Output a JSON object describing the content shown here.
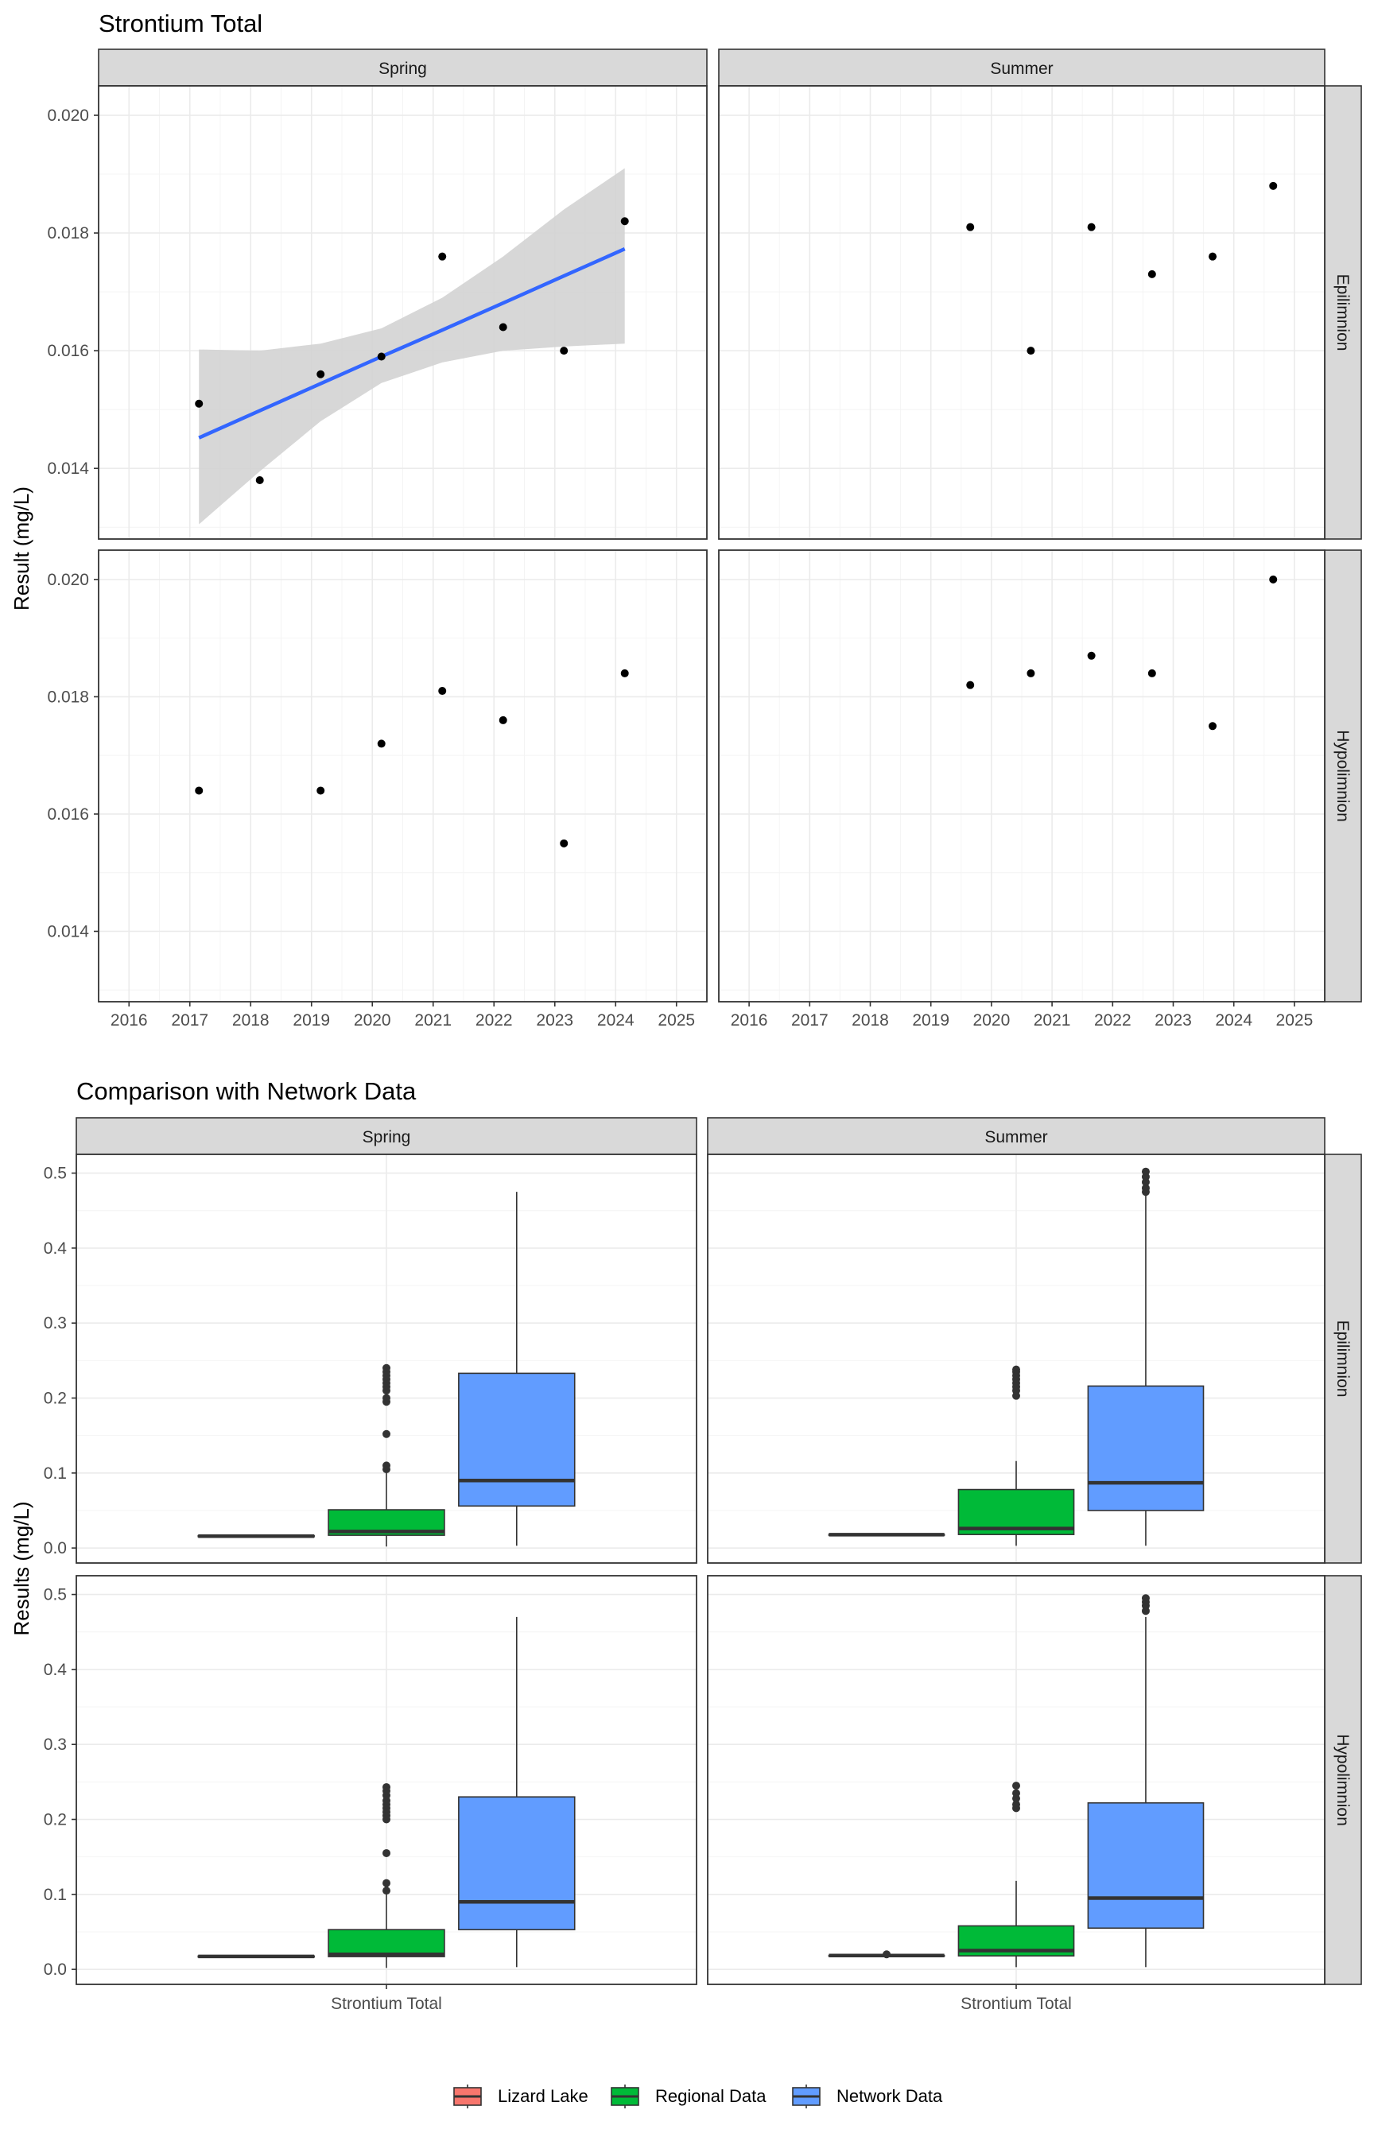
{
  "chart_data": [
    {
      "type": "scatter",
      "title": "Strontium Total",
      "ylabel": "Result (mg/L)",
      "xlabel": "",
      "column_facets": [
        "Spring",
        "Summer"
      ],
      "row_facets": [
        "Epilimnion",
        "Hypolimnion"
      ],
      "x_ticks": [
        "2016",
        "2017",
        "2018",
        "2019",
        "2020",
        "2021",
        "2022",
        "2023",
        "2024",
        "2025"
      ],
      "y_ticks": [
        "0.014",
        "0.016",
        "0.018",
        "0.020"
      ],
      "xlim": [
        2015.5,
        2025.5
      ],
      "ylim": [
        0.0128,
        0.0205
      ],
      "grid": true,
      "point_color": "#000000",
      "trend_color": "#3366ff",
      "ribbon_color": "#d3d3d3",
      "panels": [
        {
          "column": "Spring",
          "row": "Epilimnion",
          "points": [
            [
              2017.15,
              0.0151
            ],
            [
              2018.15,
              0.0138
            ],
            [
              2019.15,
              0.0156
            ],
            [
              2020.15,
              0.0159
            ],
            [
              2021.15,
              0.0176
            ],
            [
              2022.15,
              0.0164
            ],
            [
              2023.15,
              0.016
            ],
            [
              2024.15,
              0.0182
            ]
          ],
          "trend": {
            "x": [
              2017.15,
              2018.15,
              2019.15,
              2020.15,
              2021.15,
              2022.15,
              2023.15,
              2024.15
            ],
            "fit": [
              0.01452,
              0.01498,
              0.01544,
              0.0159,
              0.01635,
              0.01681,
              0.01727,
              0.01773
            ],
            "lower": [
              0.01305,
              0.01395,
              0.0148,
              0.01545,
              0.0158,
              0.016,
              0.01607,
              0.01612
            ],
            "upper": [
              0.01602,
              0.016,
              0.01612,
              0.01638,
              0.0169,
              0.0176,
              0.0184,
              0.0191
            ]
          }
        },
        {
          "column": "Summer",
          "row": "Epilimnion",
          "points": [
            [
              2019.65,
              0.0181
            ],
            [
              2020.65,
              0.016
            ],
            [
              2021.65,
              0.0181
            ],
            [
              2022.65,
              0.0173
            ],
            [
              2023.65,
              0.0176
            ],
            [
              2024.65,
              0.0188
            ]
          ]
        },
        {
          "column": "Spring",
          "row": "Hypolimnion",
          "points": [
            [
              2017.15,
              0.0164
            ],
            [
              2019.15,
              0.0164
            ],
            [
              2020.15,
              0.0172
            ],
            [
              2021.15,
              0.0181
            ],
            [
              2022.15,
              0.0176
            ],
            [
              2023.15,
              0.0155
            ],
            [
              2024.15,
              0.0184
            ]
          ]
        },
        {
          "column": "Summer",
          "row": "Hypolimnion",
          "points": [
            [
              2019.65,
              0.0182
            ],
            [
              2020.65,
              0.0184
            ],
            [
              2021.65,
              0.0187
            ],
            [
              2022.65,
              0.0184
            ],
            [
              2023.65,
              0.0175
            ],
            [
              2024.65,
              0.02
            ]
          ]
        }
      ]
    },
    {
      "type": "box",
      "title": "Comparison with Network Data",
      "ylabel": "Results (mg/L)",
      "xlabel": "",
      "categories": [
        "Strontium Total"
      ],
      "column_facets": [
        "Spring",
        "Summer"
      ],
      "row_facets": [
        "Epilimnion",
        "Hypolimnion"
      ],
      "y_ticks": [
        "0.0",
        "0.1",
        "0.2",
        "0.3",
        "0.4",
        "0.5"
      ],
      "ylim": [
        -0.02,
        0.525
      ],
      "grid": true,
      "legend": {
        "position": "bottom",
        "entries": [
          {
            "name": "Lizard Lake",
            "color": "#f8766d"
          },
          {
            "name": "Regional Data",
            "color": "#00ba38"
          },
          {
            "name": "Network Data",
            "color": "#619cff"
          }
        ]
      },
      "panels": [
        {
          "column": "Spring",
          "row": "Epilimnion",
          "boxes": [
            {
              "series": "Lizard Lake",
              "min": 0.0138,
              "q1": 0.0151,
              "median": 0.0158,
              "q3": 0.0165,
              "max": 0.0182,
              "outliers": []
            },
            {
              "series": "Regional Data",
              "min": 0.002,
              "q1": 0.017,
              "median": 0.022,
              "q3": 0.051,
              "max": 0.1,
              "outliers": [
                0.105,
                0.11,
                0.152,
                0.195,
                0.2,
                0.21,
                0.215,
                0.22,
                0.225,
                0.23,
                0.235,
                0.24
              ]
            },
            {
              "series": "Network Data",
              "min": 0.003,
              "q1": 0.056,
              "median": 0.09,
              "q3": 0.233,
              "max": 0.475,
              "outliers": []
            }
          ]
        },
        {
          "column": "Summer",
          "row": "Epilimnion",
          "boxes": [
            {
              "series": "Lizard Lake",
              "min": 0.016,
              "q1": 0.0173,
              "median": 0.0178,
              "q3": 0.0181,
              "max": 0.0188,
              "outliers": []
            },
            {
              "series": "Regional Data",
              "min": 0.003,
              "q1": 0.018,
              "median": 0.026,
              "q3": 0.078,
              "max": 0.116,
              "outliers": [
                0.203,
                0.21,
                0.215,
                0.22,
                0.225,
                0.23,
                0.235,
                0.238
              ]
            },
            {
              "series": "Network Data",
              "min": 0.003,
              "q1": 0.05,
              "median": 0.087,
              "q3": 0.216,
              "max": 0.47,
              "outliers": [
                0.475,
                0.48,
                0.488,
                0.495,
                0.502
              ]
            }
          ]
        },
        {
          "column": "Spring",
          "row": "Hypolimnion",
          "boxes": [
            {
              "series": "Lizard Lake",
              "min": 0.0155,
              "q1": 0.0164,
              "median": 0.0172,
              "q3": 0.0178,
              "max": 0.0184,
              "outliers": []
            },
            {
              "series": "Regional Data",
              "min": 0.002,
              "q1": 0.017,
              "median": 0.02,
              "q3": 0.053,
              "max": 0.1,
              "outliers": [
                0.105,
                0.115,
                0.155,
                0.2,
                0.205,
                0.21,
                0.215,
                0.22,
                0.225,
                0.232,
                0.238,
                0.243
              ]
            },
            {
              "series": "Network Data",
              "min": 0.003,
              "q1": 0.053,
              "median": 0.09,
              "q3": 0.23,
              "max": 0.47,
              "outliers": []
            }
          ]
        },
        {
          "column": "Summer",
          "row": "Hypolimnion",
          "boxes": [
            {
              "series": "Lizard Lake",
              "min": 0.0175,
              "q1": 0.0182,
              "median": 0.0184,
              "q3": 0.0186,
              "max": 0.0187,
              "outliers": [
                0.02
              ]
            },
            {
              "series": "Regional Data",
              "min": 0.003,
              "q1": 0.018,
              "median": 0.025,
              "q3": 0.058,
              "max": 0.118,
              "outliers": [
                0.215,
                0.22,
                0.228,
                0.235,
                0.245
              ]
            },
            {
              "series": "Network Data",
              "min": 0.003,
              "q1": 0.055,
              "median": 0.095,
              "q3": 0.222,
              "max": 0.47,
              "outliers": [
                0.478,
                0.485,
                0.49,
                0.495
              ]
            }
          ]
        }
      ]
    }
  ]
}
